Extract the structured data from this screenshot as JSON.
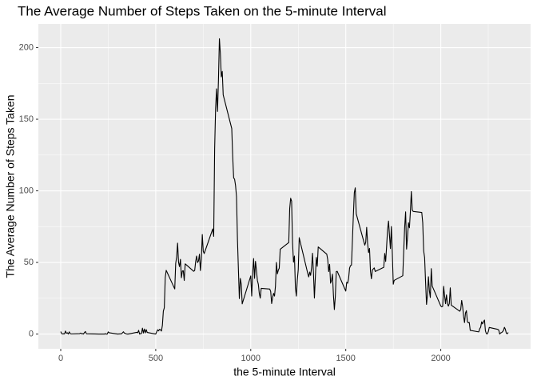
{
  "chart_data": {
    "type": "line",
    "title": "The Average Number of Steps Taken on the 5-minute Interval",
    "x_label": "the 5-minute Interval",
    "y_label": "The Average Number of Steps Taken",
    "color": "#000000",
    "grid": true,
    "xlim": [
      -117.75,
      2472.75
    ],
    "ylim": [
      -10.3,
      216.5
    ],
    "xticks": [
      0,
      500,
      1000,
      1500,
      2000
    ],
    "yticks": [
      0,
      50,
      100,
      150,
      200
    ],
    "xminor": [
      250,
      750,
      1250,
      1750,
      2250
    ],
    "yminor": [
      25,
      75,
      125,
      175
    ],
    "x": [
      0,
      5,
      10,
      15,
      20,
      25,
      30,
      35,
      40,
      45,
      50,
      55,
      100,
      105,
      110,
      115,
      120,
      125,
      130,
      135,
      200,
      230,
      235,
      240,
      245,
      250,
      255,
      300,
      320,
      330,
      335,
      340,
      345,
      350,
      355,
      400,
      405,
      410,
      415,
      420,
      425,
      430,
      435,
      440,
      445,
      450,
      455,
      500,
      505,
      510,
      515,
      520,
      525,
      530,
      535,
      540,
      545,
      550,
      555,
      600,
      605,
      610,
      615,
      620,
      625,
      630,
      635,
      640,
      645,
      650,
      655,
      700,
      705,
      710,
      715,
      720,
      725,
      730,
      735,
      740,
      745,
      750,
      755,
      800,
      805,
      810,
      815,
      820,
      825,
      830,
      835,
      840,
      845,
      850,
      855,
      900,
      905,
      910,
      915,
      920,
      925,
      930,
      935,
      940,
      945,
      950,
      955,
      1000,
      1005,
      1010,
      1015,
      1020,
      1025,
      1030,
      1035,
      1040,
      1045,
      1050,
      1055,
      1100,
      1105,
      1110,
      1115,
      1120,
      1125,
      1130,
      1135,
      1140,
      1145,
      1150,
      1155,
      1200,
      1205,
      1210,
      1215,
      1220,
      1225,
      1230,
      1235,
      1240,
      1245,
      1250,
      1255,
      1300,
      1305,
      1310,
      1315,
      1320,
      1325,
      1330,
      1335,
      1340,
      1345,
      1350,
      1355,
      1400,
      1405,
      1410,
      1415,
      1420,
      1425,
      1430,
      1435,
      1440,
      1445,
      1450,
      1455,
      1500,
      1505,
      1510,
      1515,
      1520,
      1525,
      1530,
      1535,
      1540,
      1545,
      1550,
      1555,
      1600,
      1605,
      1610,
      1615,
      1620,
      1625,
      1630,
      1635,
      1640,
      1645,
      1650,
      1655,
      1700,
      1705,
      1710,
      1715,
      1720,
      1725,
      1730,
      1735,
      1740,
      1745,
      1750,
      1755,
      1800,
      1805,
      1810,
      1815,
      1820,
      1825,
      1830,
      1835,
      1840,
      1845,
      1850,
      1855,
      1900,
      1905,
      1910,
      1915,
      1920,
      1925,
      1930,
      1935,
      1940,
      1945,
      1950,
      1955,
      2000,
      2005,
      2010,
      2015,
      2020,
      2025,
      2030,
      2035,
      2040,
      2045,
      2050,
      2055,
      2100,
      2105,
      2110,
      2115,
      2120,
      2125,
      2130,
      2135,
      2140,
      2145,
      2150,
      2155,
      2200,
      2205,
      2210,
      2215,
      2220,
      2225,
      2230,
      2235,
      2240,
      2245,
      2250,
      2255,
      2300,
      2305,
      2310,
      2315,
      2320,
      2325,
      2330,
      2335,
      2340,
      2345,
      2350,
      2355
    ],
    "values": [
      1.7,
      0.3,
      0.1,
      0.2,
      0.1,
      2.1,
      0.5,
      0.9,
      0,
      1.5,
      0.3,
      0.1,
      0.3,
      0.7,
      0.2,
      0.3,
      0,
      1.1,
      1.8,
      0.2,
      0,
      0,
      0.2,
      0,
      0,
      1.5,
      0.9,
      0,
      0.2,
      1.6,
      0.6,
      0.5,
      0.1,
      0,
      0,
      1.2,
      0.9,
      2.6,
      0,
      0.3,
      0.4,
      4.1,
      0.7,
      3.5,
      0.8,
      3.1,
      1.1,
      0,
      1.6,
      3,
      2.2,
      3.3,
      3,
      2.1,
      6.1,
      16,
      18.3,
      39.5,
      44.5,
      31.5,
      49.3,
      53.8,
      63.5,
      50,
      47.1,
      52.2,
      39.3,
      44,
      44.2,
      37.4,
      49,
      43.8,
      44.4,
      50.5,
      54.5,
      49.9,
      51,
      55.7,
      44.3,
      52.3,
      69.5,
      57.8,
      56.2,
      73.4,
      68.2,
      129.4,
      157.5,
      171.2,
      155.4,
      177.3,
      206.2,
      195.9,
      179.6,
      183.4,
      167,
      143.5,
      124,
      109.1,
      108.1,
      103.7,
      95.9,
      66.2,
      45.2,
      24.8,
      38.8,
      35,
      21.1,
      40.6,
      26.5,
      42.4,
      52.7,
      38.9,
      50.8,
      44.3,
      37.4,
      34.7,
      28.3,
      25.1,
      31.9,
      31.4,
      29.7,
      21.3,
      25.5,
      28.4,
      26.5,
      33.4,
      50,
      42,
      44.6,
      46,
      59.2,
      63.9,
      87.7,
      94.8,
      92.8,
      63.4,
      50.2,
      54.5,
      32.4,
      26.5,
      37.7,
      45.1,
      67.3,
      42.3,
      39.9,
      43.3,
      41,
      46.2,
      56.4,
      42.8,
      25.1,
      40,
      53.5,
      47.3,
      60.8,
      55.8,
      52,
      43.6,
      48.7,
      35.5,
      37.5,
      41.8,
      27.5,
      17.1,
      26.1,
      43.6,
      43.8,
      30,
      36.1,
      35.5,
      38.8,
      46,
      47.8,
      48.1,
      65.3,
      82.9,
      98.7,
      102.1,
      84,
      62.1,
      64.1,
      74.5,
      63.2,
      56.9,
      59.8,
      43.9,
      38.6,
      44.7,
      45.5,
      46.2,
      43.7,
      46.6,
      56.3,
      50.7,
      61.2,
      72.7,
      78.9,
      68.9,
      59.7,
      75.1,
      56.5,
      34.8,
      37.5,
      40.7,
      58,
      74.7,
      85.3,
      59.3,
      67.8,
      77.7,
      74.2,
      85.3,
      99.5,
      86.6,
      85.6,
      84.9,
      77.8,
      58,
      53.4,
      36.3,
      20.7,
      27.4,
      40,
      30.2,
      25.5,
      45.7,
      33.5,
      19.6,
      19,
      19.3,
      33.3,
      26.8,
      21.2,
      27.3,
      21.3,
      19.5,
      21.3,
      32.3,
      20.2,
      15.9,
      17.2,
      23.5,
      19.2,
      12.5,
      8,
      14.7,
      16.3,
      8.7,
      7.8,
      8.1,
      2.6,
      1.5,
      3.7,
      4.8,
      8.5,
      7.1,
      8.7,
      9.8,
      2.2,
      0.3,
      0.1,
      1.6,
      4.6,
      3.3,
      2.8,
      0,
      0.8,
      1,
      1.6,
      2.6,
      4.7,
      3.3,
      0.6,
      0.2,
      1.1
    ]
  }
}
